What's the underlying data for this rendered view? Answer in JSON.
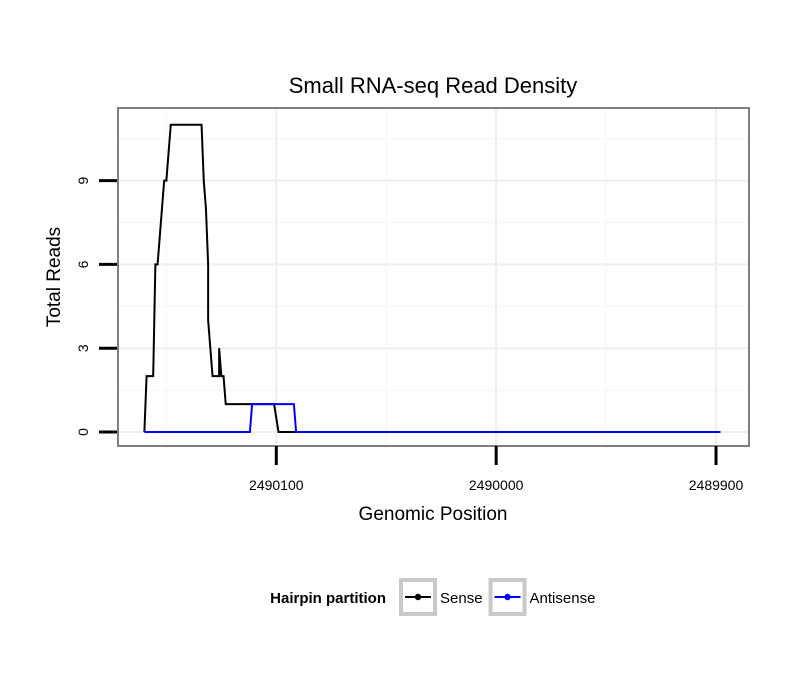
{
  "chart_data": {
    "type": "line",
    "title": "Small RNA-seq Read Density",
    "xlabel": "Genomic Position",
    "ylabel": "Total Reads",
    "x_reversed": true,
    "xlim": [
      2490172,
      2489885
    ],
    "ylim": [
      -0.5,
      11.6
    ],
    "x_ticks": [
      2490100,
      2490000,
      2489900
    ],
    "x_tick_labels": [
      "2490100",
      "2490000",
      "2489900"
    ],
    "y_ticks": [
      0,
      3,
      6,
      9
    ],
    "y_tick_labels": [
      "0",
      "3",
      "6",
      "9"
    ],
    "grid": true,
    "legend": {
      "title": "Hairpin partition",
      "position": "bottom"
    },
    "series": [
      {
        "name": "Sense",
        "color": "#000000",
        "x": [
          2490160,
          2490159,
          2490157,
          2490156,
          2490155,
          2490154,
          2490152,
          2490151,
          2490150,
          2490148,
          2490146,
          2490145,
          2490144,
          2490141,
          2490137,
          2490134,
          2490133,
          2490132,
          2490131,
          2490131,
          2490129,
          2490129,
          2490127,
          2490126,
          2490126,
          2490125,
          2490124,
          2490123,
          2490122,
          2490121,
          2490119,
          2490117,
          2490101,
          2490099,
          2490098,
          2490090,
          2490080,
          2490070,
          2490060,
          2489950,
          2489898
        ],
        "y": [
          0,
          2,
          2,
          2,
          6,
          6,
          8,
          9,
          9,
          11,
          11,
          11,
          11,
          11,
          11,
          11,
          9,
          8,
          6,
          4,
          2,
          2,
          2,
          2,
          3,
          2,
          2,
          1,
          1,
          1,
          1,
          1,
          1,
          0,
          0,
          0,
          0,
          0,
          0,
          0,
          0
        ]
      },
      {
        "name": "Antisense",
        "color": "#0000ff",
        "x": [
          2490160,
          2490140,
          2490120,
          2490112,
          2490111,
          2490105,
          2490100,
          2490092,
          2490091,
          2490080,
          2490060,
          2490000,
          2489900,
          2489898
        ],
        "y": [
          0,
          0,
          0,
          0,
          1,
          1,
          1,
          1,
          0,
          0,
          0,
          0,
          0,
          0
        ]
      }
    ]
  }
}
